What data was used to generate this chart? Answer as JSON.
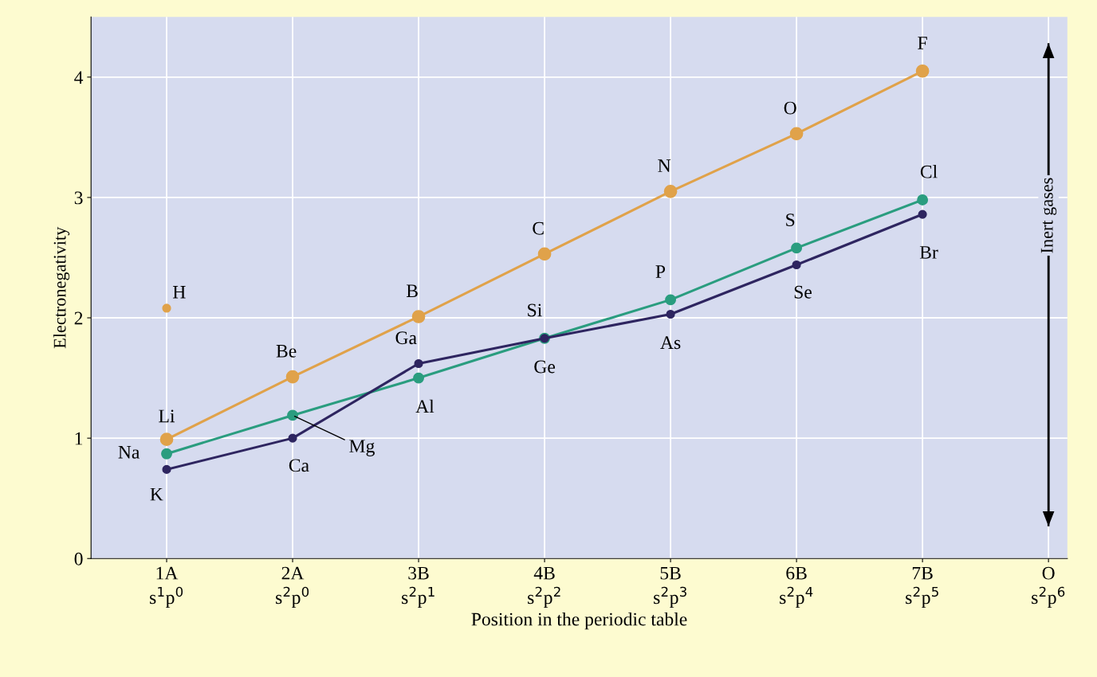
{
  "chart_data": {
    "type": "line",
    "xlabel": "Position in the periodic table",
    "ylabel": "Electronegativity",
    "categories": [
      "1A\ns$^{1}$p$^{0}$",
      "2A\ns$^{2}$p$^{0}$",
      "3B\ns$^{2}$p$^{1}$",
      "4B\ns$^{2}$p$^{2}$",
      "5B\ns$^{2}$p$^{3}$",
      "6B\ns$^{2}$p$^{4}$",
      "7B\ns$^{2}$p$^{5}$",
      "O\ns$^{2}$p$^{6}$"
    ],
    "series": [
      {
        "color": "#e0a24a",
        "type": "scatter",
        "values": [
          2.08,
          null,
          null,
          null,
          null,
          null,
          null,
          null
        ]
      },
      {
        "color": "#e0a24a",
        "values": [
          0.99,
          1.51,
          2.01,
          2.53,
          3.05,
          3.53,
          4.05,
          null
        ]
      },
      {
        "color": "#2a9d7f",
        "values": [
          0.87,
          1.19,
          1.5,
          1.83,
          2.15,
          2.58,
          2.98,
          null
        ]
      },
      {
        "color": "#2e2560",
        "values": [
          0.74,
          1.0,
          1.62,
          1.83,
          2.03,
          2.44,
          2.86,
          null
        ]
      }
    ],
    "ylim": [
      0,
      4.5
    ],
    "yticks": [
      0,
      1,
      2,
      3,
      4
    ],
    "grid": true,
    "marker": "circle",
    "annotations": [
      {
        "text": "H",
        "x": "1A\ns$^{1}$p$^{0}$",
        "y": 2.08
      },
      {
        "text": "Li",
        "x": "1A\ns$^{1}$p$^{0}$",
        "y": 0.99
      },
      {
        "text": "Be",
        "x": "2A\ns$^{2}$p$^{0}$",
        "y": 1.51
      },
      {
        "text": "B",
        "x": "3B\ns$^{2}$p$^{1}$",
        "y": 2.01
      },
      {
        "text": "C",
        "x": "4B\ns$^{2}$p$^{2}$",
        "y": 2.53
      },
      {
        "text": "N",
        "x": "5B\ns$^{2}$p$^{3}$",
        "y": 3.05
      },
      {
        "text": "O",
        "x": "6B\ns$^{2}$p$^{4}$",
        "y": 3.53
      },
      {
        "text": "F",
        "x": "7B\ns$^{2}$p$^{5}$",
        "y": 4.05
      },
      {
        "text": "Na",
        "x": "1A\ns$^{1}$p$^{0}$",
        "y": 0.87
      },
      {
        "text": "Mg",
        "x": "2A\ns$^{2}$p$^{0}$",
        "y": 1.19
      },
      {
        "text": "Al",
        "x": "3B\ns$^{2}$p$^{1}$",
        "y": 1.5
      },
      {
        "text": "Si",
        "x": "4B\ns$^{2}$p$^{2}$",
        "y": 1.83
      },
      {
        "text": "P",
        "x": "5B\ns$^{2}$p$^{3}$",
        "y": 2.15
      },
      {
        "text": "S",
        "x": "6B\ns$^{2}$p$^{4}$",
        "y": 2.58
      },
      {
        "text": "Cl",
        "x": "7B\ns$^{2}$p$^{5}$",
        "y": 2.98
      },
      {
        "text": "K",
        "x": "1A\ns$^{1}$p$^{0}$",
        "y": 0.74
      },
      {
        "text": "Ca",
        "x": "2A\ns$^{2}$p$^{0}$",
        "y": 1.0
      },
      {
        "text": "Ga",
        "x": "3B\ns$^{2}$p$^{1}$",
        "y": 1.62
      },
      {
        "text": "Ge",
        "x": "4B\ns$^{2}$p$^{2}$",
        "y": 1.83
      },
      {
        "text": "As",
        "x": "5B\ns$^{2}$p$^{3}$",
        "y": 2.03
      },
      {
        "text": "Se",
        "x": "6B\ns$^{2}$p$^{4}$",
        "y": 2.44
      },
      {
        "text": "Br",
        "x": "7B\ns$^{2}$p$^{5}$",
        "y": 2.86
      },
      "Inert gases"
    ]
  }
}
